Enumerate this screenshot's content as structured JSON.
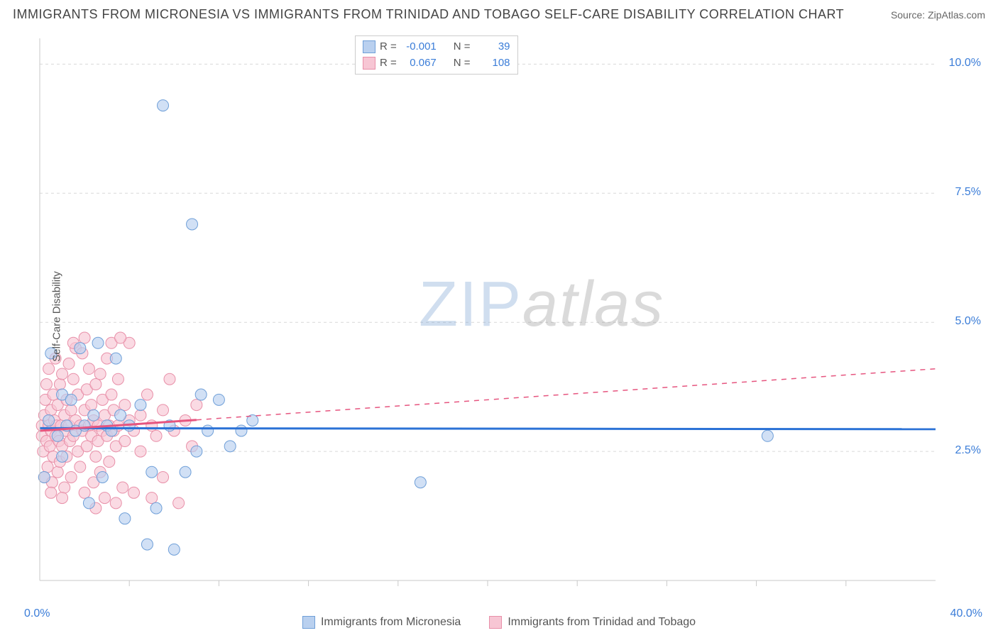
{
  "header": {
    "title": "IMMIGRANTS FROM MICRONESIA VS IMMIGRANTS FROM TRINIDAD AND TOBAGO SELF-CARE DISABILITY CORRELATION CHART",
    "source": "Source: ZipAtlas.com"
  },
  "ylabel": "Self-Care Disability",
  "watermark": {
    "part1": "ZIP",
    "part2": "atlas"
  },
  "axes": {
    "xlim": [
      0,
      40
    ],
    "ylim": [
      0,
      10.5
    ],
    "x_min_label": "0.0%",
    "x_max_label": "40.0%",
    "y_ticks": [
      {
        "v": 2.5,
        "label": "2.5%"
      },
      {
        "v": 5.0,
        "label": "5.0%"
      },
      {
        "v": 7.5,
        "label": "7.5%"
      },
      {
        "v": 10.0,
        "label": "10.0%"
      }
    ],
    "x_ticks_minor": [
      4,
      8,
      12,
      16,
      20,
      24,
      28,
      32,
      36
    ],
    "grid_color": "#d9d9d9",
    "axis_color": "#c9c9c9",
    "axis_label_color": "#3b7dd8",
    "background_color": "#ffffff"
  },
  "series": {
    "a": {
      "label": "Immigrants from Micronesia",
      "fill": "#b9d0ef",
      "stroke": "#6f9fd8",
      "line_color": "#2b72d6",
      "marker_r": 8,
      "R": "-0.001",
      "N": "39",
      "trend": {
        "y_at_x0": 2.95,
        "y_at_xmax": 2.93,
        "dash": false
      },
      "points": [
        [
          0.2,
          2.0
        ],
        [
          0.4,
          3.1
        ],
        [
          0.5,
          4.4
        ],
        [
          0.8,
          2.8
        ],
        [
          1.0,
          3.6
        ],
        [
          1.2,
          3.0
        ],
        [
          1.4,
          3.5
        ],
        [
          1.6,
          2.9
        ],
        [
          1.8,
          4.5
        ],
        [
          2.0,
          3.0
        ],
        [
          2.2,
          1.5
        ],
        [
          2.4,
          3.2
        ],
        [
          2.6,
          4.6
        ],
        [
          2.8,
          2.0
        ],
        [
          3.0,
          3.0
        ],
        [
          3.2,
          2.9
        ],
        [
          3.4,
          4.3
        ],
        [
          3.6,
          3.2
        ],
        [
          3.8,
          1.2
        ],
        [
          4.0,
          3.0
        ],
        [
          4.5,
          3.4
        ],
        [
          4.8,
          0.7
        ],
        [
          5.0,
          2.1
        ],
        [
          5.2,
          1.4
        ],
        [
          5.5,
          9.2
        ],
        [
          5.8,
          3.0
        ],
        [
          6.0,
          0.6
        ],
        [
          6.5,
          2.1
        ],
        [
          6.8,
          6.9
        ],
        [
          7.0,
          2.5
        ],
        [
          7.2,
          3.6
        ],
        [
          7.5,
          2.9
        ],
        [
          8.0,
          3.5
        ],
        [
          8.5,
          2.6
        ],
        [
          9.0,
          2.9
        ],
        [
          9.5,
          3.1
        ],
        [
          17.0,
          1.9
        ],
        [
          32.5,
          2.8
        ],
        [
          1.0,
          2.4
        ]
      ]
    },
    "b": {
      "label": "Immigrants from Trinidad and Tobago",
      "fill": "#f7c6d4",
      "stroke": "#e88fa8",
      "line_color": "#e6557f",
      "marker_r": 8,
      "R": "0.067",
      "N": "108",
      "trend": {
        "y_at_x0": 2.9,
        "y_at_xmax": 4.1,
        "solid_until_x": 7.0
      },
      "points": [
        [
          0.1,
          2.8
        ],
        [
          0.1,
          3.0
        ],
        [
          0.15,
          2.5
        ],
        [
          0.2,
          3.2
        ],
        [
          0.2,
          2.0
        ],
        [
          0.25,
          3.5
        ],
        [
          0.3,
          2.7
        ],
        [
          0.3,
          3.8
        ],
        [
          0.35,
          2.2
        ],
        [
          0.4,
          3.0
        ],
        [
          0.4,
          4.1
        ],
        [
          0.45,
          2.6
        ],
        [
          0.5,
          3.3
        ],
        [
          0.5,
          2.9
        ],
        [
          0.55,
          1.9
        ],
        [
          0.6,
          3.6
        ],
        [
          0.6,
          2.4
        ],
        [
          0.65,
          3.1
        ],
        [
          0.7,
          2.8
        ],
        [
          0.7,
          4.3
        ],
        [
          0.75,
          3.0
        ],
        [
          0.8,
          2.1
        ],
        [
          0.8,
          3.4
        ],
        [
          0.85,
          2.7
        ],
        [
          0.9,
          3.8
        ],
        [
          0.9,
          2.3
        ],
        [
          0.95,
          3.0
        ],
        [
          1.0,
          4.0
        ],
        [
          1.0,
          2.6
        ],
        [
          1.1,
          3.2
        ],
        [
          1.1,
          1.8
        ],
        [
          1.15,
          2.9
        ],
        [
          1.2,
          3.5
        ],
        [
          1.2,
          2.4
        ],
        [
          1.3,
          4.2
        ],
        [
          1.3,
          3.0
        ],
        [
          1.35,
          2.7
        ],
        [
          1.4,
          3.3
        ],
        [
          1.4,
          2.0
        ],
        [
          1.5,
          3.9
        ],
        [
          1.5,
          2.8
        ],
        [
          1.6,
          3.1
        ],
        [
          1.6,
          4.5
        ],
        [
          1.7,
          2.5
        ],
        [
          1.7,
          3.6
        ],
        [
          1.8,
          3.0
        ],
        [
          1.8,
          2.2
        ],
        [
          1.9,
          4.4
        ],
        [
          1.9,
          2.9
        ],
        [
          2.0,
          3.3
        ],
        [
          2.0,
          1.7
        ],
        [
          2.1,
          3.7
        ],
        [
          2.1,
          2.6
        ],
        [
          2.2,
          3.0
        ],
        [
          2.2,
          4.1
        ],
        [
          2.3,
          2.8
        ],
        [
          2.3,
          3.4
        ],
        [
          2.4,
          1.9
        ],
        [
          2.4,
          3.1
        ],
        [
          2.5,
          2.4
        ],
        [
          2.5,
          3.8
        ],
        [
          2.6,
          3.0
        ],
        [
          2.6,
          2.7
        ],
        [
          2.7,
          4.0
        ],
        [
          2.7,
          2.1
        ],
        [
          2.8,
          3.5
        ],
        [
          2.8,
          2.9
        ],
        [
          2.9,
          3.2
        ],
        [
          2.9,
          1.6
        ],
        [
          3.0,
          4.3
        ],
        [
          3.0,
          2.8
        ],
        [
          3.1,
          3.0
        ],
        [
          3.1,
          2.3
        ],
        [
          3.2,
          3.6
        ],
        [
          3.2,
          4.6
        ],
        [
          3.3,
          2.9
        ],
        [
          3.3,
          3.3
        ],
        [
          3.4,
          2.6
        ],
        [
          3.4,
          1.5
        ],
        [
          3.5,
          3.9
        ],
        [
          3.5,
          3.0
        ],
        [
          3.7,
          1.8
        ],
        [
          3.8,
          2.7
        ],
        [
          3.8,
          3.4
        ],
        [
          4.0,
          3.1
        ],
        [
          4.0,
          4.6
        ],
        [
          4.2,
          2.9
        ],
        [
          4.2,
          1.7
        ],
        [
          4.5,
          3.2
        ],
        [
          4.5,
          2.5
        ],
        [
          4.8,
          3.6
        ],
        [
          5.0,
          3.0
        ],
        [
          5.0,
          1.6
        ],
        [
          5.2,
          2.8
        ],
        [
          5.5,
          3.3
        ],
        [
          5.5,
          2.0
        ],
        [
          5.8,
          3.9
        ],
        [
          6.0,
          2.9
        ],
        [
          6.2,
          1.5
        ],
        [
          6.5,
          3.1
        ],
        [
          6.8,
          2.6
        ],
        [
          7.0,
          3.4
        ],
        [
          3.6,
          4.7
        ],
        [
          1.5,
          4.6
        ],
        [
          2.0,
          4.7
        ],
        [
          0.5,
          1.7
        ],
        [
          1.0,
          1.6
        ],
        [
          2.5,
          1.4
        ]
      ]
    }
  },
  "stat_legend": {
    "r_label": "R =",
    "n_label": "N ="
  },
  "bottom_legend": {
    "a": "Immigrants from Micronesia",
    "b": "Immigrants from Trinidad and Tobago"
  }
}
